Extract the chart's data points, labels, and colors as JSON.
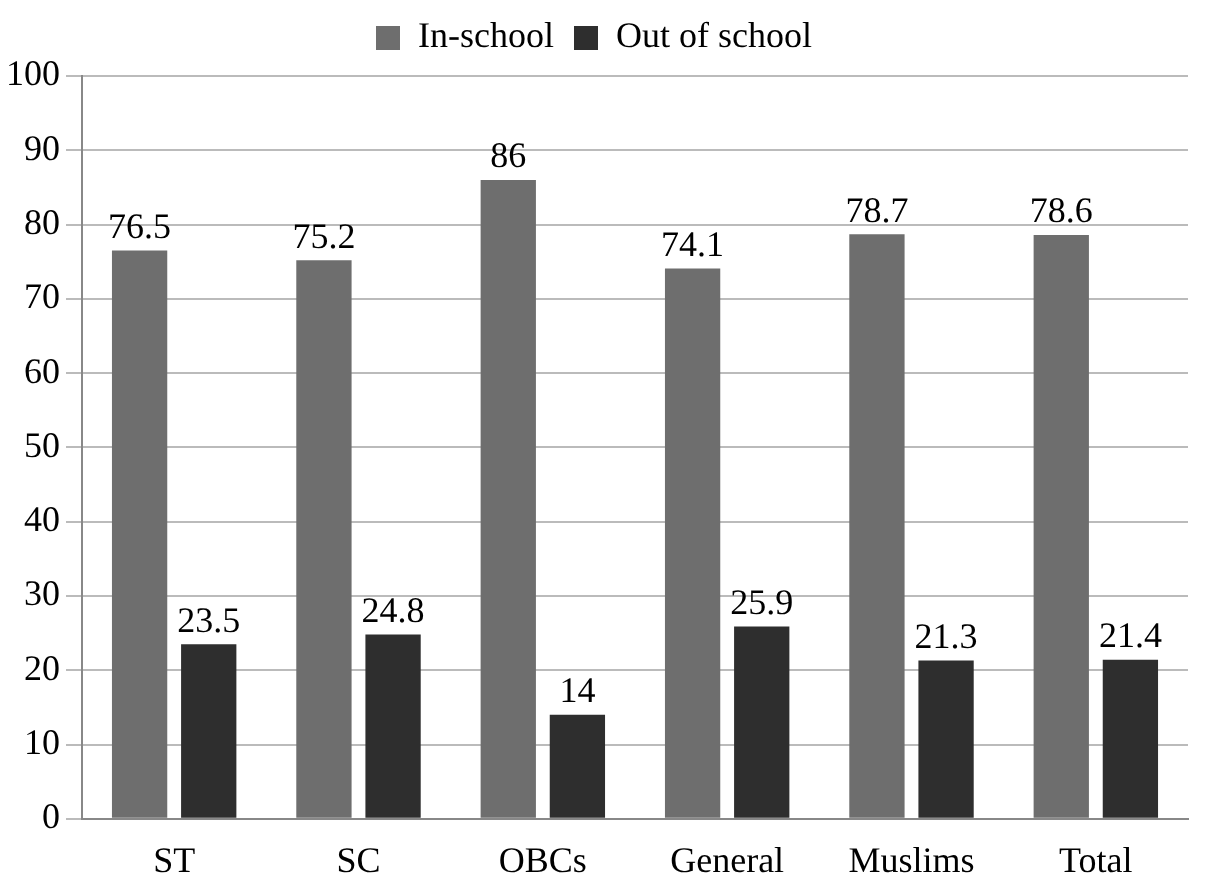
{
  "chart_data": {
    "type": "bar",
    "categories": [
      "ST",
      "SC",
      "OBCs",
      "General",
      "Muslims",
      "Total"
    ],
    "series": [
      {
        "name": "In-school",
        "color": "#6e6e6e",
        "values": [
          76.5,
          75.2,
          86,
          74.1,
          78.7,
          78.6
        ]
      },
      {
        "name": "Out of school",
        "color": "#2e2e2e",
        "values": [
          23.5,
          24.8,
          14,
          25.9,
          21.3,
          21.4
        ]
      }
    ],
    "ylim": [
      0,
      100
    ],
    "yticks": [
      0,
      10,
      20,
      30,
      40,
      50,
      60,
      70,
      80,
      90,
      100
    ],
    "grid": "y",
    "legend": "top",
    "data_labels": true
  }
}
